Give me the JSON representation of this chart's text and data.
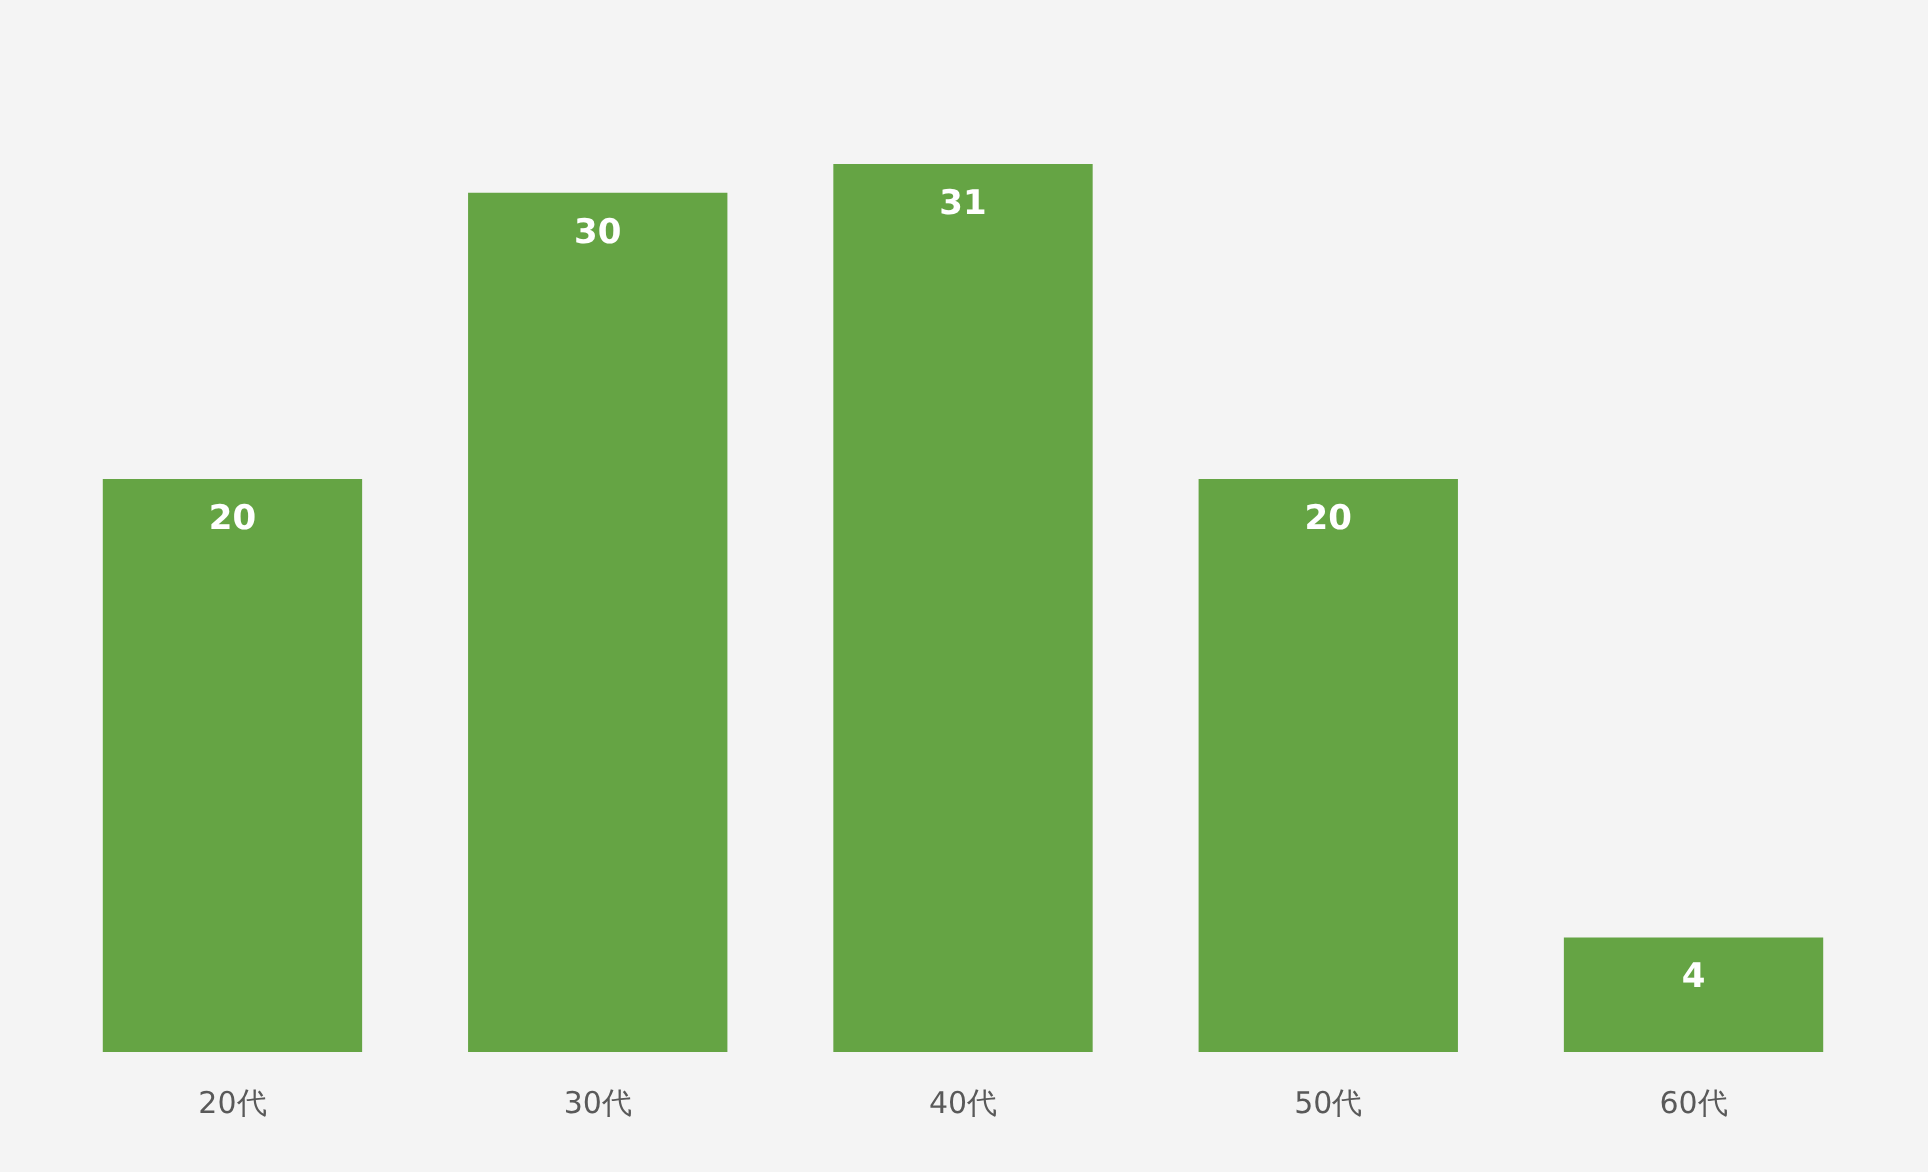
{
  "chart_data": {
    "type": "bar",
    "categories": [
      "20代",
      "30代",
      "40代",
      "50代",
      "60代"
    ],
    "values": [
      20,
      30,
      31,
      20,
      4
    ],
    "color": "#65a444",
    "data_labels": true
  }
}
